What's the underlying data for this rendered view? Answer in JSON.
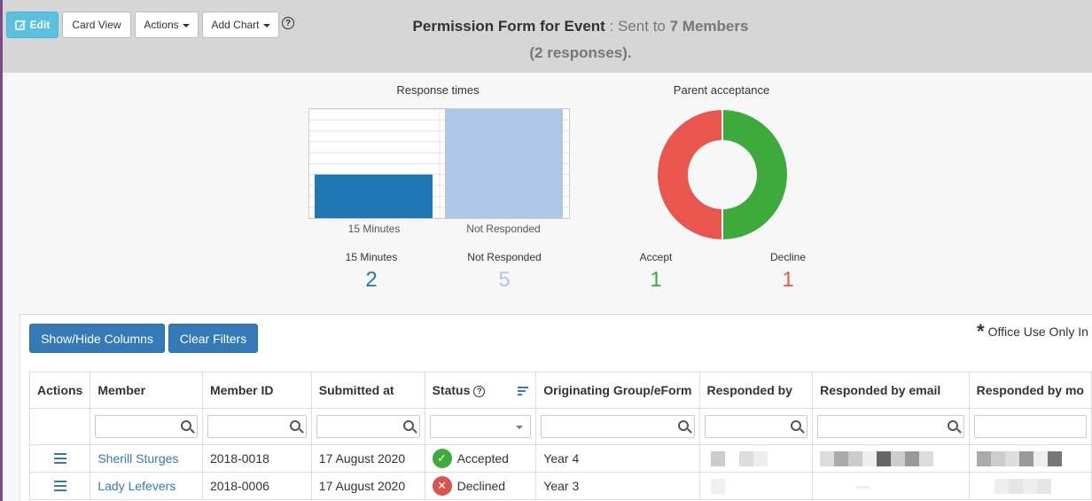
{
  "toolbar": {
    "edit_label": "Edit",
    "card_view_label": "Card View",
    "actions_label": "Actions",
    "add_chart_label": "Add Chart",
    "help_label": "?"
  },
  "form": {
    "title": "Permission Form for Event",
    "sent_prefix": ": Sent to",
    "members_count": "7 Members",
    "responses": "(2 responses)."
  },
  "charts": {
    "response_times": {
      "title": "Response times",
      "stats": [
        {
          "label": "15 Minutes",
          "value": "2",
          "color": "#1f77b4"
        },
        {
          "label": "Not Responded",
          "value": "5",
          "color": "#aec7e8"
        }
      ]
    },
    "parent_acceptance": {
      "title": "Parent acceptance",
      "stats": [
        {
          "label": "Accept",
          "value": "1",
          "color": "#3cab3c"
        },
        {
          "label": "Decline",
          "value": "1",
          "color": "#e8564e"
        }
      ]
    }
  },
  "chart_data": [
    {
      "type": "bar",
      "title": "Response times",
      "categories": [
        "15 Minutes",
        "Not Responded"
      ],
      "values": [
        2,
        5
      ],
      "colors": [
        "#1f77b4",
        "#aec7e8"
      ],
      "ylim": [
        0,
        5
      ],
      "grid": true
    },
    {
      "type": "pie",
      "title": "Parent acceptance",
      "categories": [
        "Accept",
        "Decline"
      ],
      "values": [
        1,
        1
      ],
      "colors": [
        "#3cab3c",
        "#e8564e"
      ],
      "donut": true
    }
  ],
  "table": {
    "show_hide_label": "Show/Hide Columns",
    "clear_filters_label": "Clear Filters",
    "office_use_label": "Office Use Only In",
    "columns": [
      "Actions",
      "Member",
      "Member ID",
      "Submitted at",
      "Status",
      "Originating Group/eForm",
      "Responded by",
      "Responded by email",
      "Responded by mo"
    ],
    "rows": [
      {
        "member": "Sherill Sturges",
        "member_id": "2018-0018",
        "submitted": "17 August 2020",
        "status": "Accepted",
        "group": "Year 4"
      },
      {
        "member": "Lady Lefevers",
        "member_id": "2018-0006",
        "submitted": "17 August 2020",
        "status": "Declined",
        "group": "Year 3"
      }
    ]
  }
}
